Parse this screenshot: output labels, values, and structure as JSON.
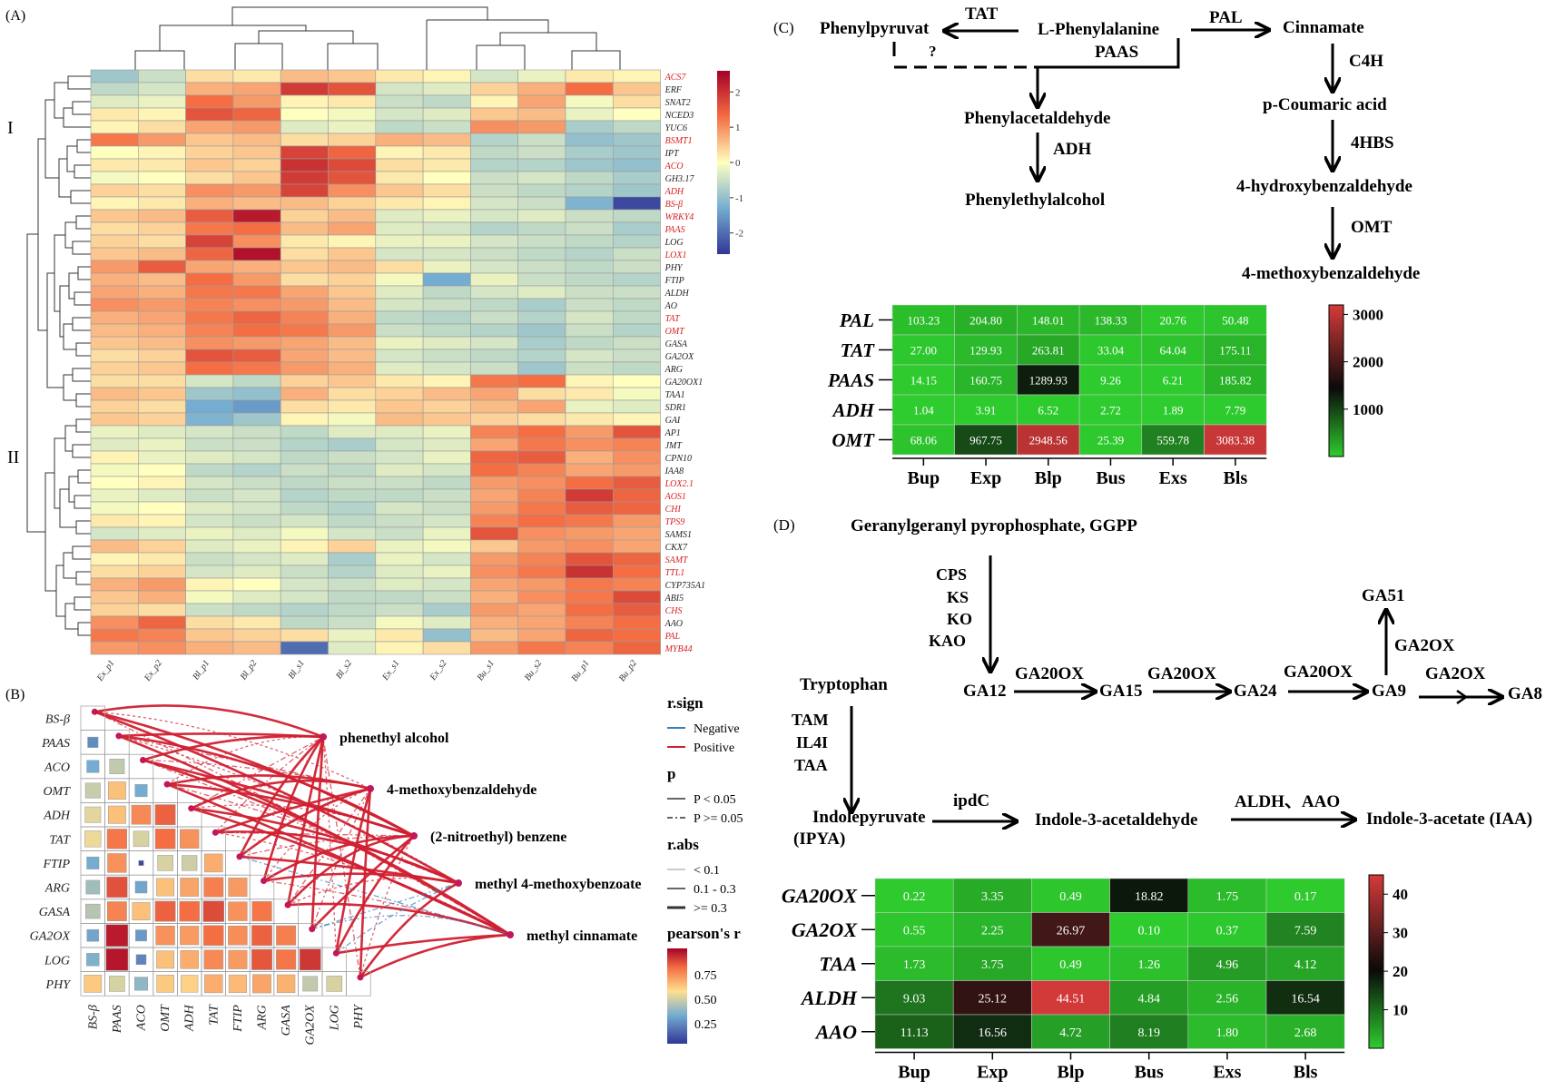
{
  "panel_labels": {
    "a": "(A)",
    "b": "(B)",
    "c": "(C)",
    "d": "(D)"
  },
  "heatmap": {
    "samples": [
      "Ex_p1",
      "Ex_p2",
      "Bl_p1",
      "Bl_p2",
      "Bl_s1",
      "Bl_s2",
      "Ex_s1",
      "Ex_s2",
      "Bu_s1",
      "Bu_s2",
      "Bu_p1",
      "Bu_p2"
    ],
    "genes": [
      {
        "name": "ACS7",
        "red": true
      },
      {
        "name": "ERF",
        "red": false
      },
      {
        "name": "SNAT2",
        "red": false
      },
      {
        "name": "NCED3",
        "red": false
      },
      {
        "name": "YUC6",
        "red": false
      },
      {
        "name": "BSMT1",
        "red": true
      },
      {
        "name": "IPT",
        "red": false
      },
      {
        "name": "ACO",
        "red": true
      },
      {
        "name": "GH3.17",
        "red": false
      },
      {
        "name": "ADH",
        "red": true
      },
      {
        "name": "BS-β",
        "red": true
      },
      {
        "name": "WRKY4",
        "red": true
      },
      {
        "name": "PAAS",
        "red": true
      },
      {
        "name": "LOG",
        "red": false
      },
      {
        "name": "LOX1",
        "red": true
      },
      {
        "name": "PHY",
        "red": false
      },
      {
        "name": "FTIP",
        "red": false
      },
      {
        "name": "ALDH",
        "red": false
      },
      {
        "name": "AO",
        "red": false
      },
      {
        "name": "TAT",
        "red": true
      },
      {
        "name": "OMT",
        "red": true
      },
      {
        "name": "GASA",
        "red": false
      },
      {
        "name": "GA2OX",
        "red": false
      },
      {
        "name": "ARG",
        "red": false
      },
      {
        "name": "GA20OX1",
        "red": false
      },
      {
        "name": "TAA1",
        "red": false
      },
      {
        "name": "SDR1",
        "red": false
      },
      {
        "name": "GAI",
        "red": false
      },
      {
        "name": "AP1",
        "red": false
      },
      {
        "name": "JMT",
        "red": false
      },
      {
        "name": "CPN10",
        "red": false
      },
      {
        "name": "IAA8",
        "red": false
      },
      {
        "name": "LOX2.1",
        "red": true
      },
      {
        "name": "AOS1",
        "red": true
      },
      {
        "name": "CHI",
        "red": true
      },
      {
        "name": "TPS9",
        "red": true
      },
      {
        "name": "SAMS1",
        "red": false
      },
      {
        "name": "CKX7",
        "red": false
      },
      {
        "name": "SAMT",
        "red": true
      },
      {
        "name": "TTL1",
        "red": true
      },
      {
        "name": "CYP735A1",
        "red": false
      },
      {
        "name": "ABI5",
        "red": false
      },
      {
        "name": "CHS",
        "red": true
      },
      {
        "name": "AAO",
        "red": false
      },
      {
        "name": "PAL",
        "red": true
      },
      {
        "name": "MYB44",
        "red": true
      }
    ],
    "values": [
      [
        -0.9,
        -0.5,
        0.3,
        0.2,
        0.6,
        0.5,
        0.2,
        0.1,
        -0.4,
        -0.2,
        0.2,
        0.1
      ],
      [
        -0.6,
        -0.4,
        0.7,
        0.8,
        1.9,
        1.6,
        -0.4,
        -0.3,
        0.4,
        0.7,
        1.3,
        0.5
      ],
      [
        -0.3,
        -0.2,
        1.3,
        0.9,
        0.1,
        0.2,
        -0.5,
        -0.6,
        0.1,
        0.8,
        -0.1,
        0.3
      ],
      [
        0.2,
        0.1,
        1.6,
        1.4,
        0.0,
        -0.1,
        -0.4,
        -0.3,
        0.5,
        0.6,
        -0.2,
        0.0
      ],
      [
        0.1,
        0.3,
        0.8,
        0.9,
        -0.3,
        -0.2,
        -0.6,
        -0.5,
        1.0,
        0.9,
        -0.8,
        -0.6
      ],
      [
        1.2,
        0.9,
        0.5,
        0.6,
        0.3,
        0.4,
        0.7,
        0.6,
        -0.7,
        -0.5,
        -1.0,
        -0.9
      ],
      [
        0.0,
        0.1,
        0.4,
        0.5,
        1.8,
        1.4,
        0.1,
        0.2,
        -0.6,
        -0.5,
        -0.8,
        -0.9
      ],
      [
        0.2,
        0.2,
        0.5,
        0.4,
        2.0,
        1.7,
        0.3,
        0.2,
        -0.7,
        -0.7,
        -0.9,
        -1.0
      ],
      [
        -0.1,
        0.0,
        0.3,
        0.5,
        1.9,
        1.6,
        0.2,
        0.0,
        -0.5,
        -0.4,
        -0.6,
        -0.8
      ],
      [
        0.4,
        0.3,
        1.0,
        0.9,
        1.8,
        1.0,
        0.5,
        0.3,
        -0.5,
        -0.6,
        -0.7,
        -0.9
      ],
      [
        0.1,
        0.2,
        0.7,
        0.6,
        0.6,
        0.4,
        0.2,
        0.1,
        -0.4,
        -0.5,
        -1.2,
        -2.4
      ],
      [
        0.5,
        0.6,
        1.5,
        2.3,
        0.4,
        0.6,
        -0.3,
        -0.2,
        -0.4,
        -0.3,
        -0.5,
        -0.6
      ],
      [
        0.3,
        0.4,
        1.2,
        1.3,
        0.6,
        0.8,
        -0.3,
        -0.4,
        -0.7,
        -0.6,
        -0.5,
        -0.8
      ],
      [
        0.4,
        0.3,
        1.8,
        1.0,
        0.2,
        0.1,
        -0.2,
        -0.2,
        -0.4,
        -0.5,
        -0.6,
        -0.7
      ],
      [
        0.5,
        0.6,
        1.4,
        2.4,
        0.3,
        0.5,
        -0.4,
        -0.4,
        -0.5,
        -0.6,
        -0.7,
        -0.5
      ],
      [
        0.9,
        1.5,
        0.8,
        0.7,
        0.5,
        0.6,
        0.3,
        -0.2,
        -0.4,
        -0.5,
        -0.6,
        -0.5
      ],
      [
        0.7,
        0.6,
        1.3,
        0.9,
        0.3,
        0.4,
        -0.1,
        -1.3,
        -0.2,
        -0.5,
        -0.6,
        -0.7
      ],
      [
        0.8,
        0.7,
        1.2,
        1.2,
        0.8,
        0.5,
        -0.3,
        -0.6,
        -0.4,
        -0.3,
        -0.5,
        -0.5
      ],
      [
        1.0,
        0.9,
        1.1,
        1.0,
        0.9,
        0.6,
        -0.4,
        -0.5,
        -0.6,
        -0.8,
        -0.5,
        -0.6
      ],
      [
        0.7,
        0.8,
        1.2,
        1.4,
        1.1,
        0.7,
        -0.6,
        -0.7,
        -0.5,
        -0.7,
        -0.4,
        -0.6
      ],
      [
        0.6,
        0.7,
        1.1,
        1.3,
        1.2,
        0.9,
        -0.5,
        -0.6,
        -0.7,
        -0.9,
        -0.5,
        -0.7
      ],
      [
        0.5,
        0.6,
        1.0,
        0.9,
        0.8,
        0.6,
        -0.2,
        -0.3,
        -0.4,
        -0.8,
        -0.6,
        -0.5
      ],
      [
        0.3,
        0.4,
        1.6,
        1.5,
        0.8,
        0.6,
        -0.4,
        -0.5,
        -0.6,
        -0.7,
        -0.4,
        -0.5
      ],
      [
        0.4,
        0.5,
        1.3,
        1.2,
        0.9,
        0.7,
        -0.3,
        -0.4,
        -0.5,
        -0.9,
        -0.5,
        -0.6
      ],
      [
        0.3,
        0.3,
        -0.4,
        -0.6,
        0.4,
        0.5,
        0.2,
        0.1,
        1.2,
        1.3,
        0.1,
        0.0
      ],
      [
        0.6,
        0.5,
        -0.9,
        -1.0,
        0.7,
        0.3,
        0.4,
        0.6,
        0.8,
        0.3,
        0.2,
        -0.1
      ],
      [
        0.4,
        0.3,
        -1.3,
        -1.5,
        0.3,
        0.2,
        0.5,
        0.4,
        0.6,
        0.8,
        -0.2,
        -0.3
      ],
      [
        0.5,
        0.4,
        -1.2,
        -0.9,
        0.1,
        -0.1,
        0.6,
        0.5,
        0.4,
        0.3,
        0.2,
        0.1
      ],
      [
        -0.2,
        -0.3,
        -0.4,
        -0.5,
        -0.6,
        -0.3,
        -0.3,
        -0.2,
        1.1,
        1.3,
        0.9,
        1.6
      ],
      [
        -0.3,
        -0.2,
        -0.5,
        -0.5,
        -0.7,
        -0.8,
        -0.4,
        -0.3,
        0.8,
        1.2,
        1.0,
        1.1
      ],
      [
        0.1,
        -0.2,
        -0.3,
        -0.4,
        -0.6,
        -0.5,
        -0.4,
        -0.2,
        1.4,
        1.5,
        0.7,
        1.0
      ],
      [
        -0.1,
        0.0,
        -0.6,
        -0.7,
        -0.5,
        -0.6,
        -0.3,
        -0.4,
        1.3,
        1.1,
        0.8,
        0.9
      ],
      [
        0.0,
        0.1,
        -0.4,
        -0.5,
        -0.6,
        -0.5,
        -0.5,
        -0.6,
        0.9,
        1.0,
        1.3,
        1.5
      ],
      [
        -0.2,
        -0.3,
        -0.5,
        -0.4,
        -0.7,
        -0.6,
        -0.6,
        -0.5,
        0.8,
        1.1,
        1.9,
        1.4
      ],
      [
        -0.1,
        0.0,
        -0.3,
        -0.4,
        -0.6,
        -0.7,
        -0.4,
        -0.5,
        0.9,
        1.2,
        1.5,
        1.4
      ],
      [
        0.2,
        0.1,
        -0.4,
        -0.5,
        -0.4,
        -0.6,
        -0.5,
        -0.4,
        1.1,
        1.3,
        1.2,
        0.9
      ],
      [
        -0.4,
        -0.3,
        -0.2,
        -0.3,
        -0.1,
        -0.4,
        -0.5,
        -0.2,
        1.6,
        1.0,
        0.9,
        0.8
      ],
      [
        0.6,
        0.4,
        -0.3,
        -0.2,
        0.1,
        0.4,
        -0.2,
        -0.1,
        0.5,
        0.9,
        1.0,
        0.8
      ],
      [
        0.1,
        0.2,
        -0.5,
        -0.4,
        -0.3,
        -0.8,
        -0.2,
        -0.4,
        0.9,
        1.1,
        1.6,
        1.4
      ],
      [
        0.3,
        0.4,
        -0.4,
        -0.3,
        -0.5,
        -0.7,
        -0.3,
        -0.2,
        1.0,
        1.2,
        2.0,
        1.3
      ],
      [
        0.7,
        0.9,
        0.1,
        0.0,
        -0.4,
        -0.5,
        -0.3,
        -0.4,
        0.8,
        0.9,
        1.2,
        1.1
      ],
      [
        0.5,
        0.7,
        -0.1,
        -0.3,
        -0.4,
        -0.6,
        -0.6,
        -0.5,
        0.7,
        1.0,
        1.2,
        1.7
      ],
      [
        0.4,
        0.3,
        -0.5,
        -0.6,
        -0.7,
        -0.6,
        -0.5,
        -0.8,
        0.9,
        0.8,
        1.3,
        1.5
      ],
      [
        1.0,
        1.4,
        0.3,
        0.2,
        -0.6,
        -0.5,
        -0.1,
        -0.3,
        0.7,
        0.8,
        1.1,
        1.3
      ],
      [
        1.2,
        1.1,
        0.5,
        0.4,
        0.3,
        -0.2,
        0.2,
        -1.0,
        0.6,
        0.8,
        1.4,
        1.3
      ],
      [
        0.9,
        1.0,
        0.7,
        0.6,
        -2.0,
        -0.3,
        0.1,
        0.3,
        0.9,
        1.2,
        1.1,
        1.4
      ]
    ],
    "legend": {
      "ticks": [
        2,
        1,
        0,
        -1,
        -2
      ],
      "min": -2.6,
      "max": 2.6
    },
    "cluster_labels": [
      "I",
      "II"
    ]
  },
  "correlation": {
    "genes": [
      "BS-β",
      "PAAS",
      "ACO",
      "OMT",
      "ADH",
      "TAT",
      "FTIP",
      "ARG",
      "GASA",
      "GA2OX",
      "LOG",
      "PHY"
    ],
    "compounds": [
      "phenethyl alcohol",
      "4-methoxybenzaldehyde",
      "(2-nitroethyl) benzene",
      "methyl 4-methoxybenzoate",
      "methyl cinnamate"
    ],
    "r_values": [
      [
        0.22
      ],
      [
        0.3,
        0.44
      ],
      [
        0.45,
        0.62,
        0.3
      ],
      [
        0.5,
        0.62,
        0.74,
        0.82
      ],
      [
        0.52,
        0.78,
        0.48,
        0.8,
        0.72
      ],
      [
        0.3,
        0.72,
        0.05,
        0.48,
        0.46,
        0.66
      ],
      [
        0.38,
        0.85,
        0.28,
        0.62,
        0.68,
        0.76,
        0.7
      ],
      [
        0.42,
        0.75,
        0.62,
        0.82,
        0.8,
        0.86,
        0.72,
        0.78
      ],
      [
        0.28,
        0.95,
        0.25,
        0.72,
        0.7,
        0.8,
        0.73,
        0.82,
        0.76
      ],
      [
        0.32,
        0.96,
        0.2,
        0.62,
        0.66,
        0.74,
        0.7,
        0.84,
        0.78,
        0.9
      ],
      [
        0.6,
        0.48,
        0.35,
        0.6,
        0.58,
        0.66,
        0.63,
        0.68,
        0.65,
        0.44,
        0.48
      ]
    ],
    "legend": {
      "rsign_title": "r.sign",
      "rsign_items": [
        "Negative",
        "Positive"
      ],
      "p_title": "p",
      "p_items": [
        "P < 0.05",
        "P >= 0.05"
      ],
      "rabs_title": "r.abs",
      "rabs_items": [
        "< 0.1",
        "0.1 - 0.3",
        ">= 0.3"
      ],
      "pearson_title": "pearson's r",
      "pearson_ticks": [
        "0.75",
        "0.50",
        "0.25"
      ]
    }
  },
  "pathway_c": {
    "phenylalanine": "L-Phenylalanine",
    "phenylpyruvat": "Phenylpyruvat",
    "cinnamate": "Cinnamate",
    "phenylacetaldehyde": "Phenylacetaldehyde",
    "phenylethylalcohol": "Phenylethylalcohol",
    "p_coumaric": "p-Coumaric acid",
    "hydroxybenzaldehyde": "4-hydroxybenzaldehyde",
    "methoxybenzaldehyde": "4-methoxybenzaldehyde",
    "tat": "TAT",
    "pal": "PAL",
    "paas": "PAAS",
    "adh": "ADH",
    "c4h": "C4H",
    "hbs": "4HBS",
    "omt": "OMT",
    "question": "?"
  },
  "table_c": {
    "rows": [
      "PAL",
      "TAT",
      "PAAS",
      "ADH",
      "OMT"
    ],
    "cols": [
      "Bup",
      "Exp",
      "Blp",
      "Bus",
      "Exs",
      "Bls"
    ],
    "values": [
      [
        "103.23",
        "204.80",
        "148.01",
        "138.33",
        "20.76",
        "50.48"
      ],
      [
        "27.00",
        "129.93",
        "263.81",
        "33.04",
        "64.04",
        "175.11"
      ],
      [
        "14.15",
        "160.75",
        "1289.93",
        "9.26",
        "6.21",
        "185.82"
      ],
      [
        "1.04",
        "3.91",
        "6.52",
        "2.72",
        "1.89",
        "7.79"
      ],
      [
        "68.06",
        "967.75",
        "2948.56",
        "25.39",
        "559.78",
        "3083.38"
      ]
    ],
    "ticks": [
      "3000",
      "2000",
      "1000"
    ],
    "max": 3200
  },
  "pathway_d": {
    "ggpp": "Geranylgeranyl pyrophosphate, GGPP",
    "cps": "CPS",
    "ks": "KS",
    "ko": "KO",
    "kao": "KAO",
    "ga12": "GA12",
    "ga15": "GA15",
    "ga24": "GA24",
    "ga9": "GA9",
    "ga8": "GA8",
    "ga51": "GA51",
    "ga20ox_1": "GA20OX",
    "ga20ox_2": "GA20OX",
    "ga20ox_3": "GA20OX",
    "ga2ox_1": "GA2OX",
    "ga2ox_2": "GA2OX",
    "tryptophan": "Tryptophan",
    "tam": "TAM",
    "il4i": "IL4I",
    "taa": "TAA",
    "ipya_1": "Indolepyruvate",
    "ipya_2": "(IPYA)",
    "ipdc": "ipdC",
    "indole_ald": "Indole-3-acetaldehyde",
    "aldh_aao": "ALDH、AAO",
    "iaa": "Indole-3-acetate (IAA)"
  },
  "table_d": {
    "rows": [
      "GA20OX",
      "GA2OX",
      "TAA",
      "ALDH",
      "AAO"
    ],
    "cols": [
      "Bup",
      "Exp",
      "Blp",
      "Bus",
      "Exs",
      "Bls"
    ],
    "values": [
      [
        "0.22",
        "3.35",
        "0.49",
        "18.82",
        "1.75",
        "0.17"
      ],
      [
        "0.55",
        "2.25",
        "26.97",
        "0.10",
        "0.37",
        "7.59"
      ],
      [
        "1.73",
        "3.75",
        "0.49",
        "1.26",
        "4.96",
        "4.12"
      ],
      [
        "9.03",
        "25.12",
        "44.51",
        "4.84",
        "2.56",
        "16.54"
      ],
      [
        "11.13",
        "16.56",
        "4.72",
        "8.19",
        "1.80",
        "2.68"
      ]
    ],
    "ticks": [
      "40",
      "30",
      "20",
      "10"
    ],
    "max": 45
  },
  "colors": {
    "red_gene": "#d62020",
    "positive": "#d02030",
    "negative": "#3a7fc4"
  }
}
